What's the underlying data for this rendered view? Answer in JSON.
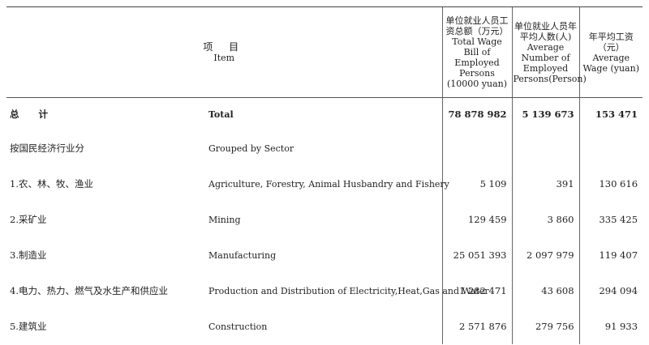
{
  "header": {
    "item_zh": "项 目",
    "item_en": "Item",
    "col1_zh": "单位就业人员工资总额（万元）",
    "col1_en": "Total Wage Bill of Employed Persons (10000 yuan)",
    "col2_zh": "单位就业人员年平均人数(人)",
    "col2_en": "Average Number of Employed Persons(Person)",
    "col3_zh": "年平均工资（元）",
    "col3_en": "Average Wage (yuan)"
  },
  "rows": [
    {
      "zh": "总 计",
      "en": "Total",
      "v1": "78 878 982",
      "v2": "5 139 673",
      "v3": "153 471"
    },
    {
      "zh": "按国民经济行业分",
      "en": "Grouped by Sector",
      "v1": "",
      "v2": "",
      "v3": ""
    },
    {
      "zh": "1.农、林、牧、渔业",
      "en": "Agriculture, Forestry, Animal Husbandry and Fishery",
      "v1": "5 109",
      "v2": "391",
      "v3": "130 616"
    },
    {
      "zh": "2.采矿业",
      "en": "Mining",
      "v1": "129 459",
      "v2": "3 860",
      "v3": "335 425"
    },
    {
      "zh": "3.制造业",
      "en": "Manufacturing",
      "v1": "25 051 393",
      "v2": "2 097 979",
      "v3": "119 407"
    },
    {
      "zh": "4.电力、热力、燃气及水生产和供应业",
      "en": "Production and Distribution of Electricity,Heat,Gas and Water",
      "v1": "1 282 471",
      "v2": "43 608",
      "v3": "294 094"
    },
    {
      "zh": "5.建筑业",
      "en": "Construction",
      "v1": "2 571 876",
      "v2": "279 756",
      "v3": "91 933"
    }
  ]
}
